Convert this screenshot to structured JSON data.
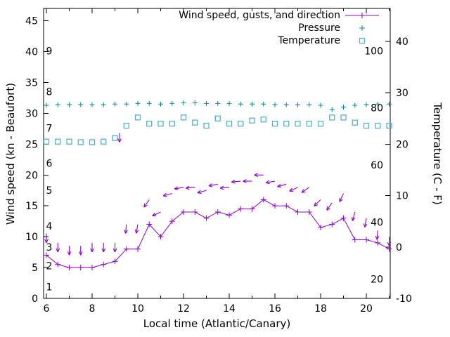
{
  "chart_data": {
    "type": "line",
    "title": "",
    "x_label": "Local time (Atlantic/Canary)",
    "x_axis": {
      "major_ticks": [
        6,
        8,
        10,
        12,
        14,
        16,
        18,
        20
      ],
      "minor_ticks": [
        7,
        9,
        11,
        13,
        15,
        17,
        19,
        21
      ],
      "range": [
        5.88,
        21.05
      ]
    },
    "y_left": {
      "label": "Wind speed (kn - Beaufort)",
      "ticks": [
        0,
        5,
        10,
        15,
        20,
        25,
        30,
        35,
        40,
        45
      ],
      "range": [
        0,
        47
      ]
    },
    "y_right": {
      "label": "Temperature (C - F)",
      "ticks": [
        -10,
        0,
        10,
        20,
        30,
        40
      ],
      "range": [
        -10,
        46.4
      ]
    },
    "beaufort_scale": [
      {
        "label": "1",
        "kn": 1.9
      },
      {
        "label": "2",
        "kn": 5.3
      },
      {
        "label": "3",
        "kn": 8.3
      },
      {
        "label": "4",
        "kn": 11.7
      },
      {
        "label": "5",
        "kn": 17.5
      },
      {
        "label": "6",
        "kn": 21.9
      },
      {
        "label": "7",
        "kn": 27.6
      },
      {
        "label": "8",
        "kn": 33.5
      },
      {
        "label": "9",
        "kn": 40.1
      }
    ],
    "fahrenheit_scale": [
      20,
      40,
      60,
      80,
      100
    ],
    "legend": [
      {
        "label": "Wind speed, gusts, and direction",
        "series": "wind"
      },
      {
        "label": "Pressure",
        "series": "pressure"
      },
      {
        "label": "Temperature",
        "series": "temperature"
      }
    ],
    "hours": [
      6,
      6.5,
      7,
      7.5,
      8,
      8.5,
      9,
      9.5,
      10,
      10.5,
      11,
      11.5,
      12,
      12.5,
      13,
      13.5,
      14,
      14.5,
      15,
      15.5,
      16,
      16.5,
      17,
      17.5,
      18,
      18.5,
      19,
      19.5,
      20,
      20.5,
      21
    ],
    "series": {
      "wind_speed_kn": [
        7,
        5.5,
        5,
        5,
        5,
        5.5,
        6,
        8,
        8,
        12,
        10,
        12.5,
        14,
        14,
        13,
        14,
        13.5,
        14.5,
        14.5,
        16,
        15,
        15,
        14,
        14,
        11.5,
        12,
        13,
        9.5,
        9.5,
        9,
        8
      ],
      "pressure_plot_units_kn_axis": [
        31.3,
        31.4,
        31.4,
        31.4,
        31.4,
        31.4,
        31.5,
        31.5,
        31.6,
        31.6,
        31.5,
        31.6,
        31.7,
        31.7,
        31.6,
        31.6,
        31.6,
        31.5,
        31.5,
        31.5,
        31.4,
        31.4,
        31.4,
        31.4,
        31.3,
        30.6,
        31.0,
        31.3,
        31.4,
        31.5,
        31.5
      ],
      "temperature_c": [
        20.5,
        20.5,
        20.5,
        20.4,
        20.4,
        20.5,
        21.2,
        23.6,
        25.2,
        24.0,
        24.0,
        24.0,
        25.2,
        24.2,
        23.6,
        25.0,
        24.0,
        24.0,
        24.6,
        24.8,
        24.0,
        24.0,
        24.0,
        24.0,
        24.0,
        25.2,
        25.2,
        24.2,
        23.6,
        23.6,
        23.6
      ]
    },
    "wind_gust_arrows": [
      [
        6,
        10.5,
        180
      ],
      [
        6.5,
        9,
        180
      ],
      [
        7,
        8.5,
        180
      ],
      [
        7.5,
        8.5,
        180
      ],
      [
        8,
        9,
        180
      ],
      [
        8.5,
        9,
        180
      ],
      [
        9,
        9,
        180
      ],
      [
        9.2,
        26.8,
        180
      ],
      [
        9.5,
        12,
        185
      ],
      [
        10,
        12,
        190
      ],
      [
        10.5,
        16,
        215
      ],
      [
        11,
        14,
        245
      ],
      [
        11.5,
        17,
        255
      ],
      [
        12,
        18,
        260
      ],
      [
        12.5,
        18,
        265
      ],
      [
        13,
        17.5,
        255
      ],
      [
        13.5,
        18.5,
        260
      ],
      [
        14,
        18,
        265
      ],
      [
        14.5,
        19,
        265
      ],
      [
        15,
        19,
        270
      ],
      [
        15.5,
        20,
        270
      ],
      [
        16,
        19,
        260
      ],
      [
        16.5,
        18.5,
        255
      ],
      [
        17,
        18,
        245
      ],
      [
        17.5,
        18,
        235
      ],
      [
        18,
        16,
        225
      ],
      [
        18.5,
        15.5,
        215
      ],
      [
        19,
        17,
        205
      ],
      [
        19.5,
        14,
        195
      ],
      [
        20,
        13,
        190
      ],
      [
        20.5,
        11,
        185
      ],
      [
        21,
        10,
        180
      ]
    ],
    "colors": {
      "wind": "#9400d3",
      "pressure": "#008b8b",
      "temperature": "#56b0d2",
      "axis": "#000000",
      "background": "#ffffff"
    }
  }
}
